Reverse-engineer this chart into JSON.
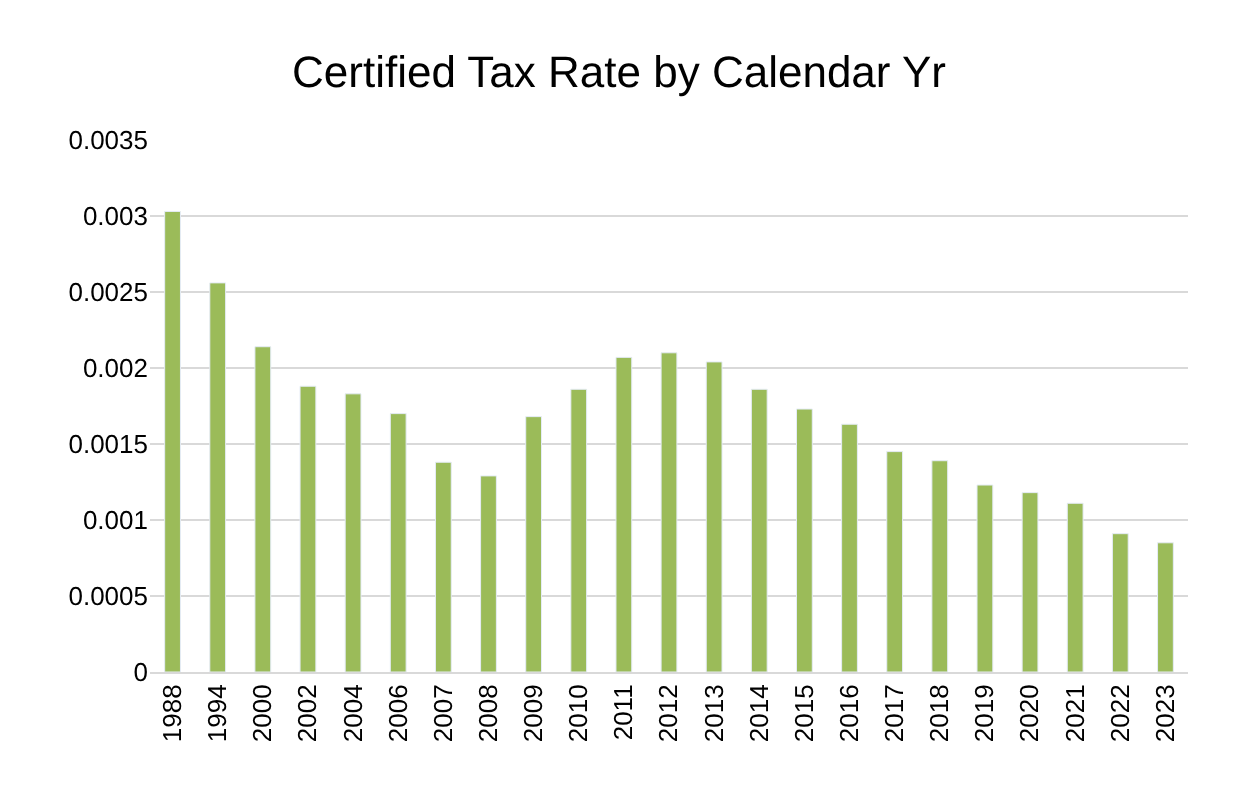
{
  "chart_data": {
    "type": "bar",
    "title": "Certified Tax Rate by Calendar Yr",
    "categories": [
      "1988",
      "1994",
      "2000",
      "2002",
      "2004",
      "2006",
      "2007",
      "2008",
      "2009",
      "2010",
      "2011",
      "2012",
      "2013",
      "2014",
      "2015",
      "2016",
      "2017",
      "2018",
      "2019",
      "2020",
      "2021",
      "2022",
      "2023"
    ],
    "values": [
      0.00303,
      0.00256,
      0.00214,
      0.00188,
      0.00183,
      0.0017,
      0.00138,
      0.00129,
      0.00168,
      0.00186,
      0.00207,
      0.0021,
      0.00204,
      0.00186,
      0.00173,
      0.00163,
      0.00145,
      0.00139,
      0.00123,
      0.00118,
      0.00111,
      0.00091,
      0.00085
    ],
    "color": "#9bbb59",
    "ylim": [
      0,
      0.0035
    ],
    "yticks": [
      0,
      0.0005,
      0.001,
      0.0015,
      0.002,
      0.0025,
      0.003,
      0.0035
    ],
    "grid": "y",
    "legend": false
  }
}
